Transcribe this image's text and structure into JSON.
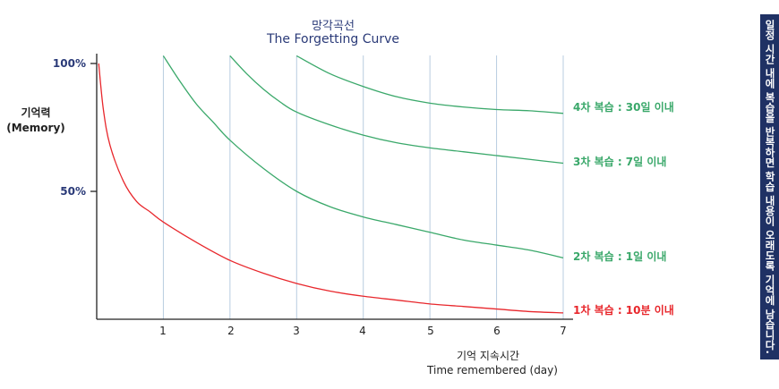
{
  "chart_data": {
    "type": "line",
    "title": "망각곡선",
    "subtitle": "The Forgetting Curve",
    "ylabel": [
      "기억력",
      "(Memory)"
    ],
    "xlabel": [
      "기억 지속시간",
      "Time remembered (day)"
    ],
    "ylim": [
      0,
      100
    ],
    "xlim": [
      0,
      7
    ],
    "x_ticks": [
      "1",
      "2",
      "3",
      "4",
      "5",
      "6",
      "7"
    ],
    "y_ticks": [
      {
        "value": 100,
        "label": "100%"
      },
      {
        "value": 50,
        "label": "50%"
      }
    ],
    "grid": "vertical",
    "series": [
      {
        "name": "1차 복습 : 10분 이내",
        "color": "#e8272c",
        "points": [
          [
            0.03,
            100
          ],
          [
            0.1,
            82
          ],
          [
            0.2,
            68
          ],
          [
            0.4,
            54
          ],
          [
            0.6,
            46
          ],
          [
            0.8,
            42
          ],
          [
            1,
            38
          ],
          [
            1.5,
            30
          ],
          [
            2,
            23
          ],
          [
            2.5,
            18
          ],
          [
            3,
            14
          ],
          [
            3.5,
            11
          ],
          [
            4,
            9
          ],
          [
            4.5,
            7.5
          ],
          [
            5,
            6
          ],
          [
            5.5,
            5
          ],
          [
            6,
            4
          ],
          [
            6.5,
            3
          ],
          [
            7,
            2.5
          ]
        ]
      },
      {
        "name": "2차 복습 : 1일 이내",
        "color": "#3aa86a",
        "points": [
          [
            1,
            103
          ],
          [
            1.25,
            93
          ],
          [
            1.5,
            84
          ],
          [
            1.75,
            77
          ],
          [
            2,
            70
          ],
          [
            2.5,
            59
          ],
          [
            3,
            50
          ],
          [
            3.5,
            44
          ],
          [
            4,
            40
          ],
          [
            4.5,
            37
          ],
          [
            5,
            34
          ],
          [
            5.5,
            31
          ],
          [
            6,
            29
          ],
          [
            6.5,
            27
          ],
          [
            7,
            24
          ]
        ]
      },
      {
        "name": "3차 복습 : 7일 이내",
        "color": "#3aa86a",
        "points": [
          [
            2,
            103
          ],
          [
            2.25,
            96
          ],
          [
            2.5,
            90
          ],
          [
            2.75,
            85
          ],
          [
            3,
            81
          ],
          [
            3.5,
            76
          ],
          [
            4,
            72
          ],
          [
            4.5,
            69
          ],
          [
            5,
            67
          ],
          [
            5.5,
            65.5
          ],
          [
            6,
            64
          ],
          [
            6.5,
            62.5
          ],
          [
            7,
            61
          ]
        ]
      },
      {
        "name": "4차 복습 : 30일 이내",
        "color": "#3aa86a",
        "points": [
          [
            3,
            103
          ],
          [
            3.5,
            96
          ],
          [
            4,
            91
          ],
          [
            4.5,
            87
          ],
          [
            5,
            84.5
          ],
          [
            5.5,
            83
          ],
          [
            6,
            82
          ],
          [
            6.5,
            81.5
          ],
          [
            7,
            80.5
          ]
        ]
      }
    ]
  },
  "side_note": "일정 시간 내에 복습을 반복하면 학습 내용이 오래도록 기억에 남습니다."
}
